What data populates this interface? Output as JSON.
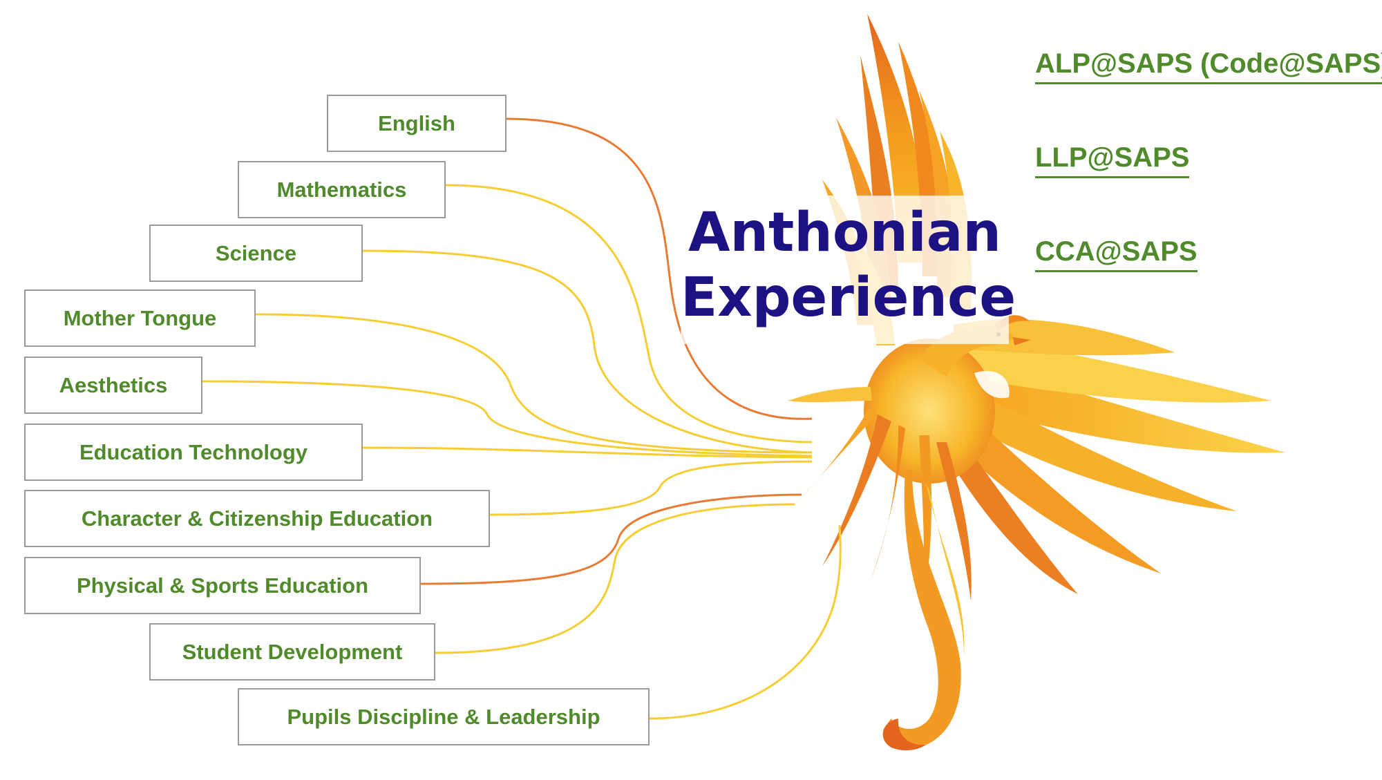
{
  "title": {
    "line1": "Anthonian",
    "line2": "Experience"
  },
  "programmes": [
    {
      "label": "ALP@SAPS (Code@SAPS)"
    },
    {
      "label": "LLP@SAPS"
    },
    {
      "label": "CCA@SAPS"
    }
  ],
  "subjects": [
    {
      "label": "English"
    },
    {
      "label": "Mathematics"
    },
    {
      "label": "Science"
    },
    {
      "label": "Mother Tongue"
    },
    {
      "label": "Aesthetics"
    },
    {
      "label": "Education Technology"
    },
    {
      "label": "Character & Citizenship Education"
    },
    {
      "label": "Physical & Sports Education"
    },
    {
      "label": "Student Development"
    },
    {
      "label": "Pupils Discipline & Leadership"
    }
  ],
  "colors": {
    "label_green": "#4f8a2b",
    "title_navy": "#1c1284",
    "thread_yellow": "#f6cd32",
    "thread_orange": "#e87a34"
  }
}
